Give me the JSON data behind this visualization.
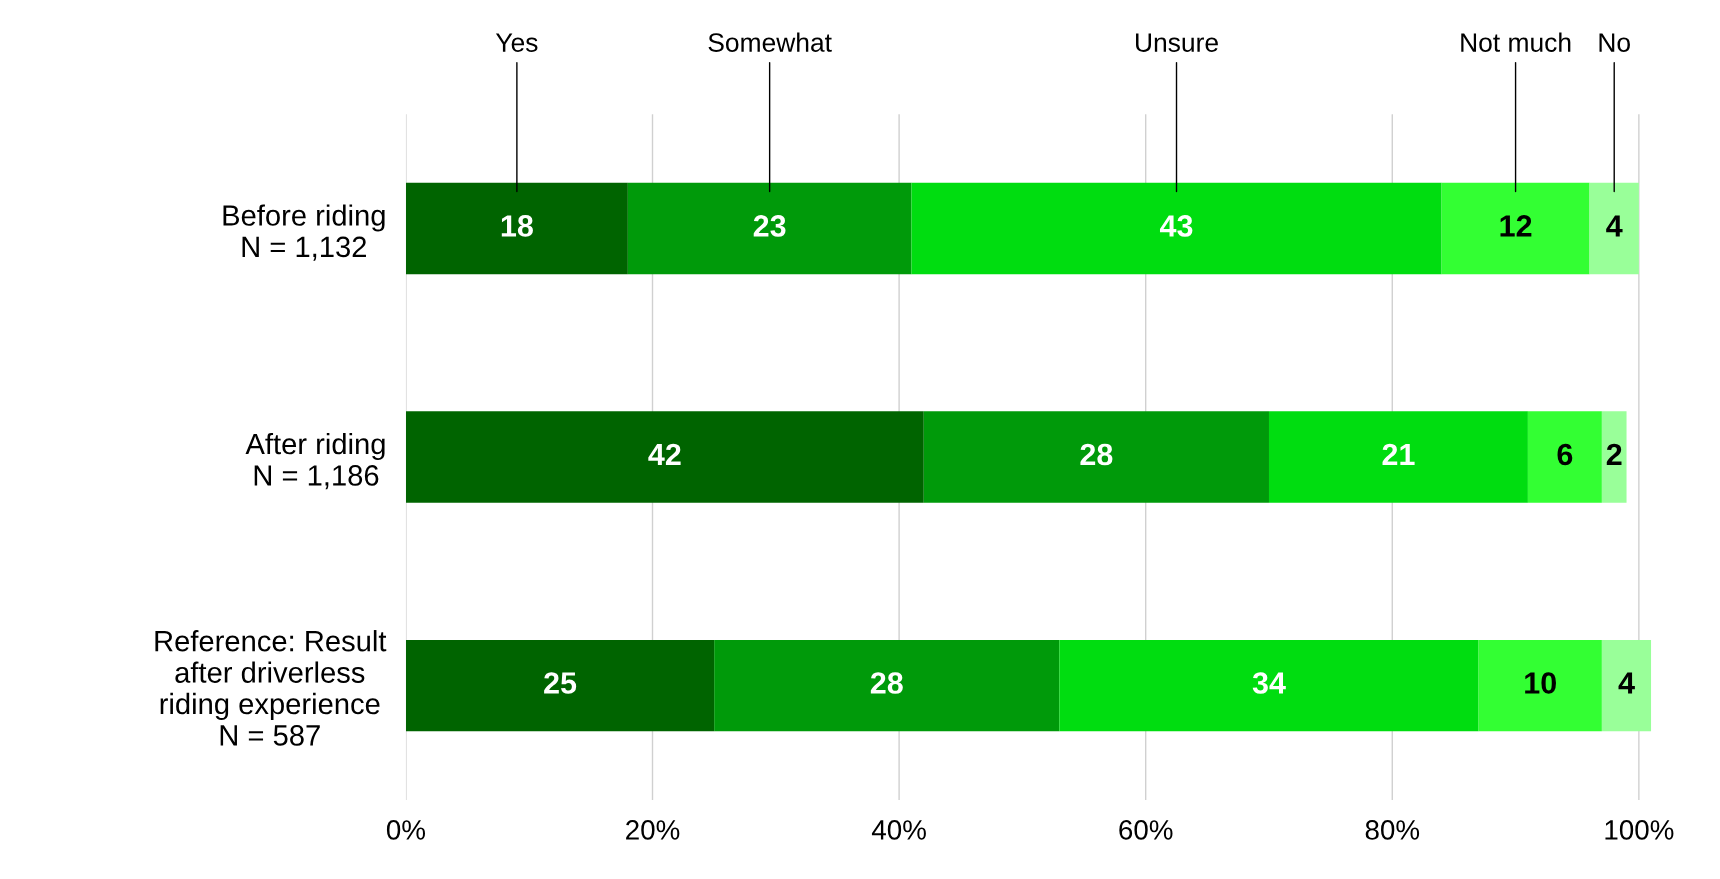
{
  "chart_data": {
    "type": "bar",
    "orientation": "horizontal",
    "stacked": true,
    "categories": [
      "Before riding\nN = 1,132",
      "After riding\nN = 1,186",
      "Reference: Result\nafter driverless\nriding experience\nN = 587"
    ],
    "series": [
      {
        "name": "Yes",
        "color": "#006400",
        "values": [
          18,
          42,
          25
        ]
      },
      {
        "name": "Somewhat",
        "color": "#009a0a",
        "values": [
          23,
          28,
          28
        ]
      },
      {
        "name": "Unsure",
        "color": "#00dd10",
        "values": [
          43,
          21,
          34
        ]
      },
      {
        "name": "Not much",
        "color": "#33ff33",
        "values": [
          12,
          6,
          10
        ]
      },
      {
        "name": "No",
        "color": "#99ff99",
        "values": [
          4,
          2,
          4
        ]
      }
    ],
    "xlim": [
      0,
      101
    ],
    "xticks": [
      {
        "value": 0,
        "label": "0%"
      },
      {
        "value": 20,
        "label": "20%"
      },
      {
        "value": 40,
        "label": "40%"
      },
      {
        "value": 60,
        "label": "60%"
      },
      {
        "value": 80,
        "label": "80%"
      },
      {
        "value": 100,
        "label": "100%"
      }
    ],
    "grid": "x",
    "legend": false,
    "data_labels": true
  }
}
